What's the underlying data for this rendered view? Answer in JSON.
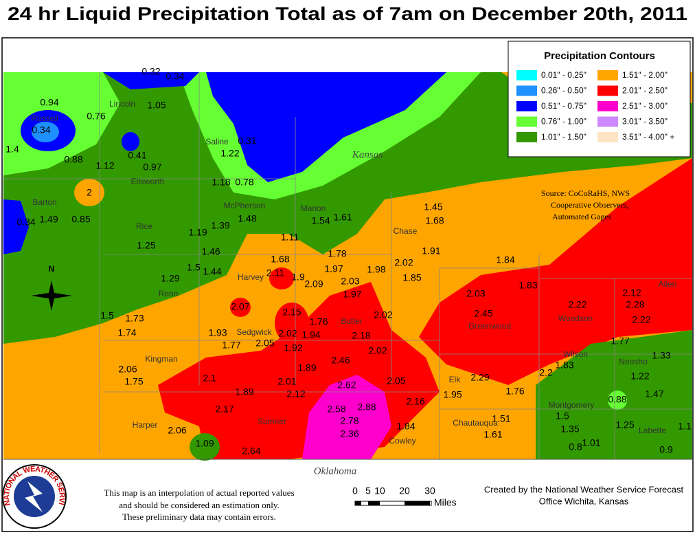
{
  "title": "24 hr Liquid Precipitation Total as of 7am on December 20th, 2011",
  "legend": {
    "title": "Precipitation Contours",
    "items": [
      {
        "label": "0.01\" - 0.25\"",
        "color": "#00ffff"
      },
      {
        "label": "0.26\" - 0.50\"",
        "color": "#1e90ff"
      },
      {
        "label": "0.51\" - 0.75\"",
        "color": "#0000ff"
      },
      {
        "label": "0.76\" - 1.00\"",
        "color": "#66ff33"
      },
      {
        "label": "1.01\" - 1.50\"",
        "color": "#339900"
      },
      {
        "label": "1.51\" - 2.00\"",
        "color": "#ffa500"
      },
      {
        "label": "2.01\" - 2.50\"",
        "color": "#ff0000"
      },
      {
        "label": "2.51\" - 3.00\"",
        "color": "#ff00cc"
      },
      {
        "label": "3.01\" - 3.50\"",
        "color": "#cc88ff"
      },
      {
        "label": "3.51\" - 4.00\" +",
        "color": "#ffe4c4"
      }
    ]
  },
  "stations": [
    0.32,
    0.34,
    0.94,
    1.05,
    0.76,
    0.34,
    1.4,
    0.31,
    1.22,
    0.41,
    0.88,
    1.12,
    0.97,
    1.18,
    0.78,
    2,
    1.45,
    1.68,
    0.34,
    1.49,
    0.85,
    1.48,
    1.54,
    1.61,
    1.39,
    1.19,
    1.11,
    1.25,
    1.46,
    1.78,
    1.91,
    1.68,
    2.02,
    1.84,
    1.5,
    1.44,
    2.11,
    1.97,
    1.98,
    1.9,
    1.85,
    1.29,
    1.83,
    2.09,
    2.03,
    2.12,
    1.97,
    2.03,
    2.28,
    2.22,
    2.07,
    2.15,
    2.45,
    2.02,
    2.22,
    1.5,
    1.73,
    1.76,
    1.74,
    1.93,
    2.02,
    1.94,
    2.18,
    1.77,
    1.77,
    2.05,
    1.92,
    2.02,
    1.33,
    2.46,
    1.83,
    1.89,
    2.06,
    1.22,
    2.2,
    2.29,
    2.1,
    2.01,
    2.62,
    2.05,
    1.75,
    1.89,
    2.12,
    1.76,
    1.95,
    1.47,
    0.88,
    2.16,
    2.88,
    2.58,
    2.17,
    1.5,
    1.51,
    2.78,
    1.84,
    1.25,
    1.1,
    2.06,
    1.35,
    2.36,
    1.61,
    1.01,
    1.09,
    0.8,
    0.9,
    2.64
  ],
  "counties": [
    "Russell",
    "Lincoln",
    "Saline",
    "Ellsworth",
    "Barton",
    "McPherson",
    "Marion",
    "Rice",
    "Chase",
    "Harvey",
    "Reno",
    "Butler",
    "Sedgwick",
    "Greenwood",
    "Woodson",
    "Allen",
    "Kingman",
    "Wilson",
    "Neosho",
    "Elk",
    "Montgomery",
    "Harper",
    "Sumner",
    "Chautauqua",
    "Cowley",
    "Labette"
  ],
  "states": [
    "Kansas",
    "Oklahoma"
  ],
  "source": [
    "Source: CoCoRaHS, NWS",
    "Cooperative Observers,",
    "Automated Gages"
  ],
  "compass": "N",
  "logo_text": "NATIONAL WEATHER SERVICE",
  "disclaimer": [
    "This map is an interpolation of actual reported values",
    "and should be considered an estimation only.",
    "These preliminary data may contain errors."
  ],
  "scale": {
    "ticks": [
      "0",
      "5",
      "10",
      "20",
      "30"
    ],
    "unit": "Miles"
  },
  "credit": [
    "Created by the National Weather Service Forecast",
    "Office Wichita, Kansas"
  ]
}
